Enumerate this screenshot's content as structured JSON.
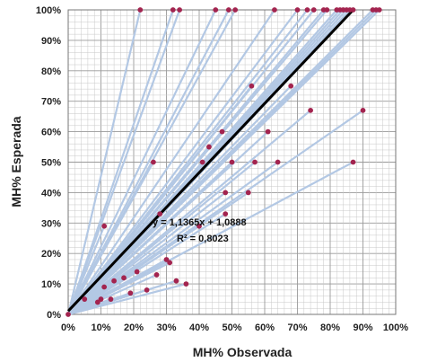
{
  "chart_data": {
    "type": "scatter",
    "xlabel": "MH%  Observada",
    "ylabel": "MH% Esperada",
    "xlim": [
      0,
      100
    ],
    "ylim": [
      0,
      100
    ],
    "x_ticks": [
      "0%",
      "10%",
      "20%",
      "30%",
      "40%",
      "50%",
      "60%",
      "70%",
      "80%",
      "90%",
      "100%"
    ],
    "y_ticks": [
      "0%",
      "10%",
      "20%",
      "30%",
      "40%",
      "50%",
      "60%",
      "70%",
      "80%",
      "90%",
      "100%"
    ],
    "grid": true,
    "colors": {
      "marker": "#a3244f",
      "connector": "#b3c8e4",
      "trend": "#000000",
      "grid": "#c8c8c8"
    },
    "points": [
      {
        "x": 0,
        "y": 0
      },
      {
        "x": 5,
        "y": 5
      },
      {
        "x": 9,
        "y": 4
      },
      {
        "x": 10,
        "y": 5
      },
      {
        "x": 11,
        "y": 9
      },
      {
        "x": 13,
        "y": 5
      },
      {
        "x": 14,
        "y": 11
      },
      {
        "x": 11,
        "y": 29
      },
      {
        "x": 17,
        "y": 12
      },
      {
        "x": 19,
        "y": 7
      },
      {
        "x": 21,
        "y": 14
      },
      {
        "x": 22,
        "y": 100
      },
      {
        "x": 24,
        "y": 8
      },
      {
        "x": 26,
        "y": 50
      },
      {
        "x": 27,
        "y": 13
      },
      {
        "x": 28,
        "y": 33
      },
      {
        "x": 30,
        "y": 18
      },
      {
        "x": 31,
        "y": 17
      },
      {
        "x": 32,
        "y": 100
      },
      {
        "x": 33,
        "y": 11
      },
      {
        "x": 34,
        "y": 100
      },
      {
        "x": 36,
        "y": 10
      },
      {
        "x": 40,
        "y": 29
      },
      {
        "x": 41,
        "y": 50
      },
      {
        "x": 43,
        "y": 55
      },
      {
        "x": 45,
        "y": 100
      },
      {
        "x": 47,
        "y": 60
      },
      {
        "x": 48,
        "y": 33
      },
      {
        "x": 48,
        "y": 40
      },
      {
        "x": 49,
        "y": 100
      },
      {
        "x": 50,
        "y": 50
      },
      {
        "x": 51,
        "y": 100
      },
      {
        "x": 55,
        "y": 40
      },
      {
        "x": 56,
        "y": 75
      },
      {
        "x": 57,
        "y": 50
      },
      {
        "x": 61,
        "y": 60
      },
      {
        "x": 63,
        "y": 100
      },
      {
        "x": 64,
        "y": 50
      },
      {
        "x": 68,
        "y": 75
      },
      {
        "x": 70,
        "y": 100
      },
      {
        "x": 73,
        "y": 100
      },
      {
        "x": 74,
        "y": 67
      },
      {
        "x": 75,
        "y": 100
      },
      {
        "x": 78,
        "y": 100
      },
      {
        "x": 79,
        "y": 100
      },
      {
        "x": 82,
        "y": 100
      },
      {
        "x": 83,
        "y": 100
      },
      {
        "x": 84,
        "y": 100
      },
      {
        "x": 85,
        "y": 100
      },
      {
        "x": 86,
        "y": 100
      },
      {
        "x": 87,
        "y": 100
      },
      {
        "x": 87,
        "y": 50
      },
      {
        "x": 90,
        "y": 67
      },
      {
        "x": 93,
        "y": 100
      },
      {
        "x": 94,
        "y": 100
      },
      {
        "x": 95,
        "y": 100
      }
    ],
    "trendline": {
      "slope": 1.1365,
      "intercept": 1.0888
    },
    "annotations": {
      "equation": "y = 1,1365x + 1,0888",
      "r_squared": "R² = 0,8023"
    }
  }
}
